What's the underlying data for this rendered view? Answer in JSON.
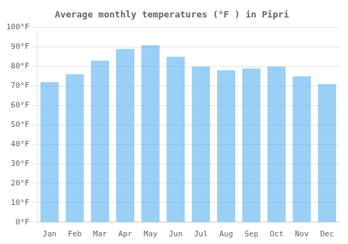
{
  "chart_data": {
    "type": "bar",
    "title": "Average monthly temperatures (°F ) in Pīpri",
    "categories": [
      "Jan",
      "Feb",
      "Mar",
      "Apr",
      "May",
      "Jun",
      "Jul",
      "Aug",
      "Sep",
      "Oct",
      "Nov",
      "Dec"
    ],
    "values": [
      72,
      76,
      83,
      89,
      91,
      85,
      80,
      78,
      79,
      80,
      75,
      71
    ],
    "ylim": [
      0,
      100
    ],
    "yticks": [
      {
        "value": 0,
        "label": "0°F"
      },
      {
        "value": 10,
        "label": "10°F"
      },
      {
        "value": 20,
        "label": "20°F"
      },
      {
        "value": 30,
        "label": "30°F"
      },
      {
        "value": 40,
        "label": "40°F"
      },
      {
        "value": 50,
        "label": "50°F"
      },
      {
        "value": 60,
        "label": "60°F"
      },
      {
        "value": 70,
        "label": "70°F"
      },
      {
        "value": 80,
        "label": "80°F"
      },
      {
        "value": 90,
        "label": "90°F"
      },
      {
        "value": 100,
        "label": "100°F"
      }
    ],
    "grid": true
  }
}
